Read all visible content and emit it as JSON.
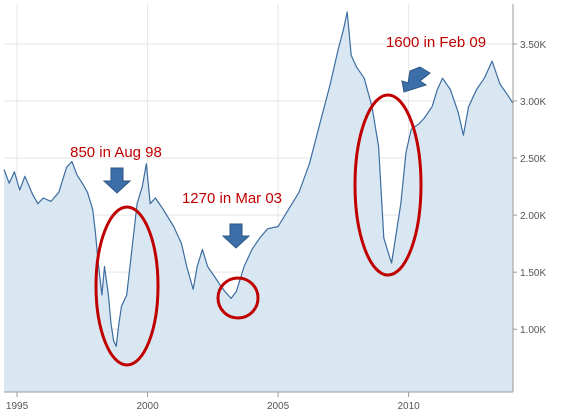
{
  "chart_data": {
    "type": "area",
    "title": "",
    "xlabel": "",
    "ylabel": "",
    "xlim": [
      1994.5,
      2014.0
    ],
    "ylim": [
      0.45,
      3.85
    ],
    "grid": true,
    "legend": "none",
    "x_ticks": [
      {
        "value": 1995,
        "label": "1995"
      },
      {
        "value": 2000,
        "label": "2000"
      },
      {
        "value": 2005,
        "label": "2005"
      },
      {
        "value": 2010,
        "label": "2010"
      }
    ],
    "y_ticks": [
      {
        "value": 1.0,
        "label": "1.00K"
      },
      {
        "value": 1.5,
        "label": "1.50K"
      },
      {
        "value": 2.0,
        "label": "2.00K"
      },
      {
        "value": 2.5,
        "label": "2.50K"
      },
      {
        "value": 3.0,
        "label": "3.00K"
      },
      {
        "value": 3.5,
        "label": "3.50K"
      }
    ],
    "series": [
      {
        "color": "#3d6da0",
        "fill": "#d9e7f3",
        "points": [
          [
            1994.5,
            2.4
          ],
          [
            1994.7,
            2.28
          ],
          [
            1994.9,
            2.38
          ],
          [
            1995.1,
            2.22
          ],
          [
            1995.3,
            2.34
          ],
          [
            1995.6,
            2.18
          ],
          [
            1995.8,
            2.1
          ],
          [
            1996.0,
            2.15
          ],
          [
            1996.3,
            2.12
          ],
          [
            1996.6,
            2.2
          ],
          [
            1996.9,
            2.42
          ],
          [
            1997.1,
            2.47
          ],
          [
            1997.3,
            2.35
          ],
          [
            1997.5,
            2.28
          ],
          [
            1997.7,
            2.2
          ],
          [
            1997.9,
            2.05
          ],
          [
            1998.0,
            1.85
          ],
          [
            1998.1,
            1.6
          ],
          [
            1998.25,
            1.3
          ],
          [
            1998.35,
            1.55
          ],
          [
            1998.5,
            1.3
          ],
          [
            1998.6,
            1.05
          ],
          [
            1998.7,
            0.9
          ],
          [
            1998.8,
            0.85
          ],
          [
            1998.9,
            1.05
          ],
          [
            1999.0,
            1.2
          ],
          [
            1999.2,
            1.3
          ],
          [
            1999.4,
            1.7
          ],
          [
            1999.6,
            2.1
          ],
          [
            1999.8,
            2.25
          ],
          [
            1999.95,
            2.45
          ],
          [
            2000.1,
            2.1
          ],
          [
            2000.3,
            2.15
          ],
          [
            2000.6,
            2.05
          ],
          [
            2001.0,
            1.9
          ],
          [
            2001.3,
            1.75
          ],
          [
            2001.5,
            1.55
          ],
          [
            2001.75,
            1.35
          ],
          [
            2001.9,
            1.55
          ],
          [
            2002.1,
            1.7
          ],
          [
            2002.3,
            1.55
          ],
          [
            2002.6,
            1.45
          ],
          [
            2002.8,
            1.38
          ],
          [
            2003.0,
            1.32
          ],
          [
            2003.2,
            1.27
          ],
          [
            2003.4,
            1.33
          ],
          [
            2003.7,
            1.55
          ],
          [
            2004.0,
            1.7
          ],
          [
            2004.3,
            1.8
          ],
          [
            2004.6,
            1.88
          ],
          [
            2005.0,
            1.9
          ],
          [
            2005.4,
            2.05
          ],
          [
            2005.8,
            2.2
          ],
          [
            2006.2,
            2.45
          ],
          [
            2006.6,
            2.8
          ],
          [
            2007.0,
            3.15
          ],
          [
            2007.3,
            3.45
          ],
          [
            2007.5,
            3.62
          ],
          [
            2007.65,
            3.78
          ],
          [
            2007.8,
            3.4
          ],
          [
            2008.0,
            3.3
          ],
          [
            2008.3,
            3.2
          ],
          [
            2008.6,
            2.95
          ],
          [
            2008.85,
            2.6
          ],
          [
            2008.95,
            2.2
          ],
          [
            2009.05,
            1.8
          ],
          [
            2009.25,
            1.65
          ],
          [
            2009.35,
            1.58
          ],
          [
            2009.5,
            1.8
          ],
          [
            2009.7,
            2.1
          ],
          [
            2009.9,
            2.55
          ],
          [
            2010.1,
            2.75
          ],
          [
            2010.4,
            2.8
          ],
          [
            2010.6,
            2.85
          ],
          [
            2010.9,
            2.95
          ],
          [
            2011.1,
            3.1
          ],
          [
            2011.3,
            3.2
          ],
          [
            2011.6,
            3.1
          ],
          [
            2011.9,
            2.9
          ],
          [
            2012.1,
            2.7
          ],
          [
            2012.3,
            2.95
          ],
          [
            2012.6,
            3.1
          ],
          [
            2012.9,
            3.2
          ],
          [
            2013.2,
            3.35
          ],
          [
            2013.5,
            3.15
          ],
          [
            2013.8,
            3.05
          ],
          [
            2014.0,
            2.98
          ]
        ]
      }
    ],
    "annotations": [
      {
        "text": "850 in Aug 98",
        "x": 1998.6,
        "y": 0.85
      },
      {
        "text": "1270 in Mar 03",
        "x": 2003.2,
        "y": 1.27
      },
      {
        "text": "1600 in Feb 09",
        "x": 2009.3,
        "y": 1.6
      }
    ],
    "annotation_color": "#c00000",
    "arrow_color": "#3c6fa8"
  }
}
